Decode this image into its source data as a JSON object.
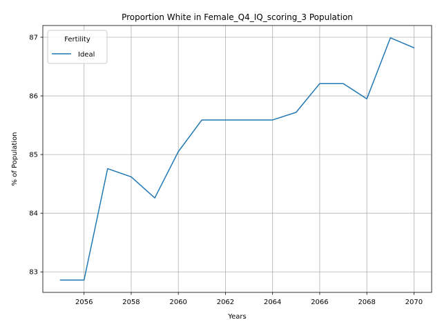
{
  "chart_data": {
    "type": "line",
    "title": "Proportion White in Female_Q4_IQ_scoring_3 Population",
    "xlabel": "Years",
    "ylabel": "% of Population",
    "xlim": [
      2054.25,
      2070.75
    ],
    "ylim": [
      82.65,
      87.2
    ],
    "xticks": [
      2056,
      2058,
      2060,
      2062,
      2064,
      2066,
      2068,
      2070
    ],
    "yticks": [
      83,
      84,
      85,
      86,
      87
    ],
    "grid": true,
    "legend": {
      "title": "Fertility",
      "position": "top-left"
    },
    "series": [
      {
        "name": "Ideal",
        "color": "#1f77b4",
        "x": [
          2055,
          2056,
          2057,
          2058,
          2059,
          2060,
          2061,
          2062,
          2063,
          2064,
          2065,
          2066,
          2067,
          2068,
          2069,
          2070
        ],
        "y": [
          82.86,
          82.86,
          84.76,
          84.62,
          84.26,
          85.05,
          85.59,
          85.59,
          85.59,
          85.59,
          85.72,
          86.21,
          86.21,
          85.95,
          86.99,
          86.82
        ]
      }
    ]
  }
}
